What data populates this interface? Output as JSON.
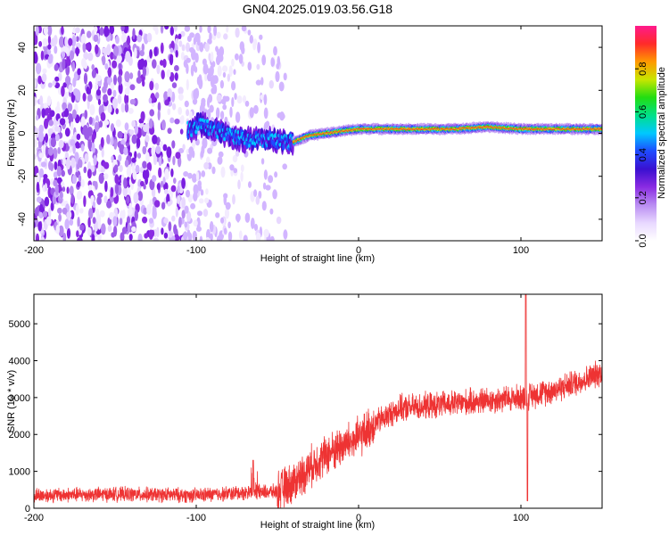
{
  "title": "GN04.2025.019.03.56.G18",
  "colors": {
    "snr_line": "#ee3333",
    "frame": "#000000",
    "colormap": [
      "#ffffff",
      "#e8d8ff",
      "#b98cf2",
      "#8a2be2",
      "#3a10d0",
      "#1e4bff",
      "#00c8ff",
      "#00e08a",
      "#22dd11",
      "#c8e600",
      "#ff9900",
      "#ff2a2a",
      "#ff1a8c"
    ]
  },
  "chart_data": [
    {
      "type": "heatmap",
      "xlabel": "Height of straight line (km)",
      "ylabel": "Frequency (Hz)",
      "xlim": [
        -200,
        150
      ],
      "ylim": [
        -50,
        50
      ],
      "xticks": [
        {
          "value": -200,
          "label": "-200"
        },
        {
          "value": -100,
          "label": "-100"
        },
        {
          "value": 0,
          "label": "0"
        },
        {
          "value": 100,
          "label": "100"
        }
      ],
      "yticks": [
        {
          "value": -40,
          "label": "-40"
        },
        {
          "value": -20,
          "label": "-20"
        },
        {
          "value": 0,
          "label": "0"
        },
        {
          "value": 20,
          "label": "20"
        },
        {
          "value": 40,
          "label": "40"
        }
      ],
      "colorbar": {
        "label": "Normalized spectral amplitude",
        "range": [
          0,
          1
        ],
        "ticks": [
          "0.0",
          "0.2",
          "0.4",
          "0.6",
          "0.8"
        ],
        "tick_values": [
          0.0,
          0.2,
          0.4,
          0.6,
          0.8
        ]
      },
      "noise_region_km": [
        -200,
        -45
      ],
      "ridge": {
        "description_points_km_hz": [
          [
            -100,
            5
          ],
          [
            -90,
            2
          ],
          [
            -80,
            -1
          ],
          [
            -70,
            -3
          ],
          [
            -60,
            -3
          ],
          [
            -50,
            -3
          ],
          [
            -40,
            -4
          ],
          [
            -30,
            -1
          ],
          [
            -20,
            0
          ],
          [
            -10,
            1
          ],
          [
            0,
            2
          ],
          [
            20,
            2
          ],
          [
            40,
            2
          ],
          [
            60,
            2
          ],
          [
            80,
            3
          ],
          [
            100,
            2
          ],
          [
            120,
            2
          ],
          [
            150,
            2
          ]
        ]
      }
    },
    {
      "type": "line",
      "xlabel": "Height of straight line (km)",
      "ylabel": "SNR (10 * v/v)",
      "xlim": [
        -200,
        150
      ],
      "ylim": [
        0,
        5800
      ],
      "xticks": [
        {
          "value": -200,
          "label": "-200"
        },
        {
          "value": -100,
          "label": "-100"
        },
        {
          "value": 0,
          "label": "0"
        },
        {
          "value": 100,
          "label": "100"
        }
      ],
      "yticks": [
        {
          "value": 0,
          "label": "0"
        },
        {
          "value": 1000,
          "label": "1000"
        },
        {
          "value": 2000,
          "label": "2000"
        },
        {
          "value": 3000,
          "label": "3000"
        },
        {
          "value": 4000,
          "label": "4000"
        },
        {
          "value": 5000,
          "label": "5000"
        }
      ],
      "series": [
        {
          "trend_points": [
            {
              "x": -200,
              "y": 350
            },
            {
              "x": -150,
              "y": 380
            },
            {
              "x": -100,
              "y": 350
            },
            {
              "x": -70,
              "y": 420
            },
            {
              "x": -50,
              "y": 450
            },
            {
              "x": -40,
              "y": 700
            },
            {
              "x": -25,
              "y": 1300
            },
            {
              "x": -10,
              "y": 1700
            },
            {
              "x": 0,
              "y": 1900
            },
            {
              "x": 10,
              "y": 2300
            },
            {
              "x": 25,
              "y": 2700
            },
            {
              "x": 50,
              "y": 2800
            },
            {
              "x": 75,
              "y": 2900
            },
            {
              "x": 100,
              "y": 3000
            },
            {
              "x": 120,
              "y": 3200
            },
            {
              "x": 140,
              "y": 3500
            },
            {
              "x": 150,
              "y": 3700
            }
          ],
          "spikes": [
            {
              "x": -65,
              "y": 1300
            },
            {
              "x": 103,
              "y": 5800
            },
            {
              "x": 104,
              "y": 200
            }
          ]
        }
      ]
    }
  ]
}
